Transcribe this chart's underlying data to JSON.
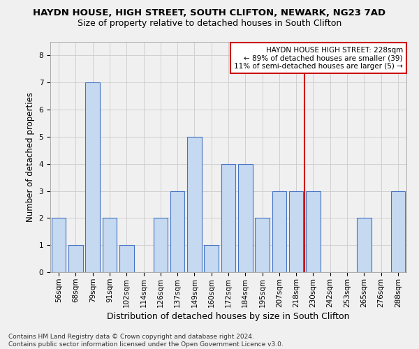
{
  "title": "HAYDN HOUSE, HIGH STREET, SOUTH CLIFTON, NEWARK, NG23 7AD",
  "subtitle": "Size of property relative to detached houses in South Clifton",
  "xlabel": "Distribution of detached houses by size in South Clifton",
  "ylabel": "Number of detached properties",
  "categories": [
    "56sqm",
    "68sqm",
    "79sqm",
    "91sqm",
    "102sqm",
    "114sqm",
    "126sqm",
    "137sqm",
    "149sqm",
    "160sqm",
    "172sqm",
    "184sqm",
    "195sqm",
    "207sqm",
    "218sqm",
    "230sqm",
    "242sqm",
    "253sqm",
    "265sqm",
    "276sqm",
    "288sqm"
  ],
  "values": [
    2,
    1,
    7,
    2,
    1,
    0,
    2,
    3,
    5,
    1,
    4,
    4,
    2,
    3,
    3,
    3,
    0,
    0,
    2,
    0,
    3
  ],
  "bar_color": "#c5d9f1",
  "bar_edge_color": "#4472c4",
  "vline_color": "#cc0000",
  "annotation_text": "HAYDN HOUSE HIGH STREET: 228sqm\n← 89% of detached houses are smaller (39)\n11% of semi-detached houses are larger (5) →",
  "annotation_box_color": "#ffffff",
  "annotation_box_edge_color": "#cc0000",
  "ylim": [
    0,
    8.5
  ],
  "yticks": [
    0,
    1,
    2,
    3,
    4,
    5,
    6,
    7,
    8
  ],
  "grid_color": "#cccccc",
  "background_color": "#f0f0f0",
  "footnote": "Contains HM Land Registry data © Crown copyright and database right 2024.\nContains public sector information licensed under the Open Government Licence v3.0.",
  "title_fontsize": 9.5,
  "subtitle_fontsize": 9,
  "xlabel_fontsize": 9,
  "ylabel_fontsize": 8.5,
  "tick_fontsize": 7.5,
  "annotation_fontsize": 7.5,
  "footnote_fontsize": 6.5
}
